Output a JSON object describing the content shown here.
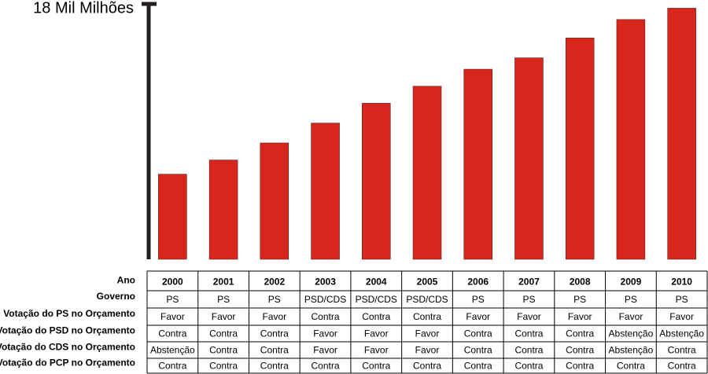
{
  "chart_data": {
    "type": "bar",
    "categories": [
      "2000",
      "2001",
      "2002",
      "2003",
      "2004",
      "2005",
      "2006",
      "2007",
      "2008",
      "2009",
      "2010"
    ],
    "values": [
      6.0,
      7.0,
      8.2,
      9.6,
      11.0,
      12.2,
      13.4,
      14.2,
      15.6,
      16.9,
      17.7
    ],
    "color": "#d9261c",
    "ylim": [
      0,
      18
    ],
    "yticks": [
      {
        "value": 18,
        "label": "18 Mil Milhões"
      }
    ]
  },
  "table": {
    "header_label": "Ano",
    "rows": [
      {
        "label": "Governo",
        "cells": [
          "PS",
          "PS",
          "PS",
          "PSD/CDS",
          "PSD/CDS",
          "PSD/CDS",
          "PS",
          "PS",
          "PS",
          "PS",
          "PS"
        ]
      },
      {
        "label": "Votação do PS no Orçamento",
        "cells": [
          "Favor",
          "Favor",
          "Favor",
          "Contra",
          "Contra",
          "Contra",
          "Favor",
          "Favor",
          "Favor",
          "Favor",
          "Favor"
        ]
      },
      {
        "label": "Votação do PSD no Orçamento",
        "cells": [
          "Contra",
          "Contra",
          "Contra",
          "Favor",
          "Favor",
          "Favor",
          "Contra",
          "Contra",
          "Contra",
          "Abstenção",
          "Abstenção"
        ]
      },
      {
        "label": "Votação do CDS no Orçamento",
        "cells": [
          "Abstenção",
          "Contra",
          "Contra",
          "Favor",
          "Favor",
          "Favor",
          "Contra",
          "Contra",
          "Contra",
          "Abstenção",
          "Contra"
        ]
      },
      {
        "label": "Votação do PCP no Orçamento",
        "cells": [
          "Contra",
          "Contra",
          "Contra",
          "Contra",
          "Contra",
          "Contra",
          "Contra",
          "Contra",
          "Contra",
          "Contra",
          "Contra"
        ]
      }
    ]
  }
}
